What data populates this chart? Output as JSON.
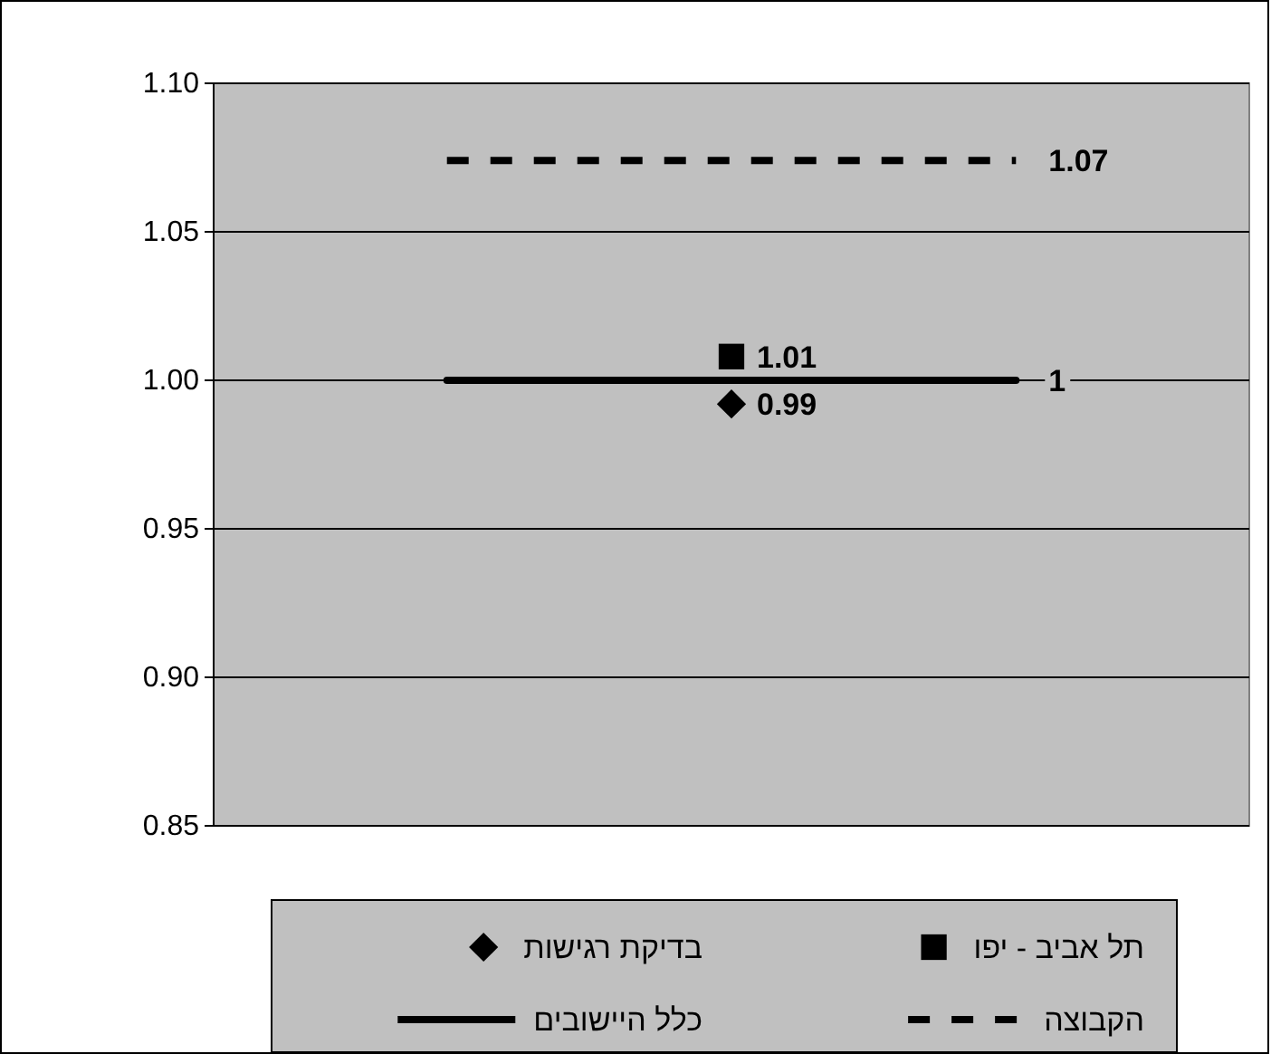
{
  "chart_data": {
    "type": "line",
    "categories": [
      null,
      null,
      null
    ],
    "series": [
      {
        "name": "תל אביב - יפו",
        "type": "scatter",
        "marker": "square",
        "color": "#000000",
        "values": [
          null,
          1.008,
          null
        ],
        "value_labels": [
          null,
          "1.01",
          null
        ]
      },
      {
        "name": "בדיקת רגישות",
        "type": "scatter",
        "marker": "diamond",
        "color": "#000000",
        "values": [
          null,
          0.992,
          null
        ],
        "value_labels": [
          null,
          "0.99",
          null
        ]
      },
      {
        "name": "הקבוצה",
        "line_style": "dashed",
        "marker": "none",
        "color": "#000000",
        "values": [
          1.074,
          1.074,
          1.074
        ],
        "value_labels": [
          null,
          null,
          "1.07"
        ]
      },
      {
        "name": "כלל היישובים",
        "line_style": "solid",
        "marker": "none",
        "color": "#000000",
        "values": [
          1,
          1,
          1
        ],
        "value_labels": [
          null,
          null,
          "1"
        ]
      }
    ],
    "ylim": [
      0.85,
      1.1
    ],
    "yticks": [
      {
        "value": 0.85,
        "label": "0.85"
      },
      {
        "value": 0.9,
        "label": "0.90"
      },
      {
        "value": 0.95,
        "label": "0.95"
      },
      {
        "value": 1,
        "label": "1.00"
      },
      {
        "value": 1.05,
        "label": "1.05"
      },
      {
        "value": 1.1,
        "label": "1.10"
      }
    ],
    "grid": "y",
    "legend": "bottom",
    "tick_labels": "y"
  }
}
